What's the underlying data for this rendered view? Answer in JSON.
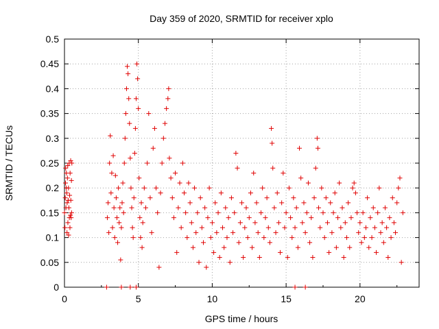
{
  "chart_data": {
    "type": "scatter",
    "title": "Day 359 of 2020, SRMTID for receiver xplo",
    "xlabel": "GPS time / hours",
    "ylabel": "SRMTID / TECUs",
    "xlim": [
      0,
      24
    ],
    "ylim": [
      0,
      0.5
    ],
    "xticks": [
      0,
      5,
      10,
      15,
      20
    ],
    "xtick_labels": [
      "0",
      "5",
      "10",
      "15",
      "20"
    ],
    "yticks": [
      0,
      0.05,
      0.1,
      0.15,
      0.2,
      0.25,
      0.3,
      0.35,
      0.4,
      0.45,
      0.5
    ],
    "ytick_labels": [
      "0",
      "0.05",
      "0.1",
      "0.15",
      "0.2",
      "0.25",
      "0.3",
      "0.35",
      "0.4",
      "0.45",
      "0.5"
    ],
    "grid": true,
    "marker": "+",
    "color": "#e00000",
    "series": [
      {
        "name": "SRMTID",
        "points": [
          [
            0.0,
            0.15
          ],
          [
            0.03,
            0.12
          ],
          [
            0.05,
            0.18
          ],
          [
            0.07,
            0.21
          ],
          [
            0.08,
            0.24
          ],
          [
            0.1,
            0.16
          ],
          [
            0.12,
            0.2
          ],
          [
            0.13,
            0.23
          ],
          [
            0.15,
            0.19
          ],
          [
            0.17,
            0.11
          ],
          [
            0.18,
            0.17
          ],
          [
            0.2,
            0.22
          ],
          [
            0.22,
            0.245
          ],
          [
            0.23,
            0.13
          ],
          [
            0.25,
            0.175
          ],
          [
            0.27,
            0.2
          ],
          [
            0.28,
            0.105
          ],
          [
            0.3,
            0.16
          ],
          [
            0.32,
            0.25
          ],
          [
            0.33,
            0.14
          ],
          [
            0.35,
            0.185
          ],
          [
            0.37,
            0.12
          ],
          [
            0.38,
            0.23
          ],
          [
            0.4,
            0.145
          ],
          [
            0.42,
            0.255
          ],
          [
            0.43,
            0.175
          ],
          [
            0.45,
            0.14
          ],
          [
            0.47,
            0.215
          ],
          [
            0.48,
            0.15
          ],
          [
            0.5,
            0.25
          ],
          [
            2.9,
            0.14
          ],
          [
            2.95,
            0.17
          ],
          [
            3.0,
            0.11
          ],
          [
            3.05,
            0.25
          ],
          [
            3.1,
            0.305
          ],
          [
            3.15,
            0.19
          ],
          [
            3.2,
            0.23
          ],
          [
            3.25,
            0.12
          ],
          [
            3.3,
            0.265
          ],
          [
            3.35,
            0.16
          ],
          [
            3.4,
            0.1
          ],
          [
            3.45,
            0.225
          ],
          [
            3.5,
            0.18
          ],
          [
            3.55,
            0.14
          ],
          [
            3.6,
            0.09
          ],
          [
            3.65,
            0.2
          ],
          [
            3.7,
            0.13
          ],
          [
            3.75,
            0.16
          ],
          [
            3.8,
            0.055
          ],
          [
            3.85,
            0.12
          ],
          [
            3.9,
            0.17
          ],
          [
            3.95,
            0.21
          ],
          [
            4.0,
            0.15
          ],
          [
            4.05,
            0.25
          ],
          [
            4.1,
            0.3
          ],
          [
            4.15,
            0.35
          ],
          [
            4.2,
            0.4
          ],
          [
            4.25,
            0.445
          ],
          [
            4.3,
            0.43
          ],
          [
            4.35,
            0.38
          ],
          [
            4.4,
            0.33
          ],
          [
            4.45,
            0.26
          ],
          [
            4.5,
            0.2
          ],
          [
            4.55,
            0.16
          ],
          [
            4.6,
            0.12
          ],
          [
            4.65,
            0.1
          ],
          [
            4.7,
            0.18
          ],
          [
            4.75,
            0.27
          ],
          [
            4.8,
            0.32
          ],
          [
            4.85,
            0.38
          ],
          [
            4.9,
            0.45
          ],
          [
            4.95,
            0.42
          ],
          [
            5.0,
            0.36
          ],
          [
            5.05,
            0.22
          ],
          [
            5.1,
            0.14
          ],
          [
            5.15,
            0.1
          ],
          [
            5.2,
            0.17
          ],
          [
            5.25,
            0.08
          ],
          [
            5.3,
            0.13
          ],
          [
            5.4,
            0.2
          ],
          [
            5.5,
            0.16
          ],
          [
            5.6,
            0.25
          ],
          [
            5.7,
            0.35
          ],
          [
            5.8,
            0.18
          ],
          [
            5.9,
            0.11
          ],
          [
            6.0,
            0.28
          ],
          [
            6.1,
            0.32
          ],
          [
            6.2,
            0.2
          ],
          [
            6.3,
            0.15
          ],
          [
            6.4,
            0.04
          ],
          [
            6.5,
            0.19
          ],
          [
            6.6,
            0.25
          ],
          [
            6.7,
            0.3
          ],
          [
            6.8,
            0.33
          ],
          [
            6.9,
            0.36
          ],
          [
            7.0,
            0.38
          ],
          [
            7.05,
            0.4
          ],
          [
            7.1,
            0.26
          ],
          [
            7.2,
            0.22
          ],
          [
            7.3,
            0.18
          ],
          [
            7.4,
            0.14
          ],
          [
            7.5,
            0.23
          ],
          [
            7.6,
            0.07
          ],
          [
            7.7,
            0.16
          ],
          [
            7.8,
            0.21
          ],
          [
            7.9,
            0.12
          ],
          [
            8.0,
            0.25
          ],
          [
            8.1,
            0.19
          ],
          [
            8.2,
            0.15
          ],
          [
            8.3,
            0.1
          ],
          [
            8.4,
            0.21
          ],
          [
            8.5,
            0.17
          ],
          [
            8.6,
            0.13
          ],
          [
            8.7,
            0.08
          ],
          [
            8.8,
            0.2
          ],
          [
            8.9,
            0.11
          ],
          [
            9.0,
            0.15
          ],
          [
            9.1,
            0.05
          ],
          [
            9.2,
            0.18
          ],
          [
            9.3,
            0.12
          ],
          [
            9.4,
            0.09
          ],
          [
            9.5,
            0.16
          ],
          [
            9.6,
            0.04
          ],
          [
            9.7,
            0.14
          ],
          [
            9.8,
            0.2
          ],
          [
            9.9,
            0.1
          ],
          [
            10.0,
            0.13
          ],
          [
            10.1,
            0.07
          ],
          [
            10.2,
            0.17
          ],
          [
            10.3,
            0.11
          ],
          [
            10.4,
            0.15
          ],
          [
            10.5,
            0.06
          ],
          [
            10.6,
            0.19
          ],
          [
            10.7,
            0.12
          ],
          [
            10.8,
            0.08
          ],
          [
            10.9,
            0.16
          ],
          [
            11.0,
            0.1
          ],
          [
            11.1,
            0.14
          ],
          [
            11.2,
            0.05
          ],
          [
            11.3,
            0.18
          ],
          [
            11.4,
            0.11
          ],
          [
            11.5,
            0.15
          ],
          [
            11.6,
            0.27
          ],
          [
            11.7,
            0.24
          ],
          [
            11.8,
            0.09
          ],
          [
            11.9,
            0.13
          ],
          [
            12.0,
            0.17
          ],
          [
            12.1,
            0.06
          ],
          [
            12.2,
            0.12
          ],
          [
            12.3,
            0.16
          ],
          [
            12.4,
            0.1
          ],
          [
            12.5,
            0.14
          ],
          [
            12.6,
            0.19
          ],
          [
            12.7,
            0.08
          ],
          [
            12.8,
            0.23
          ],
          [
            12.9,
            0.13
          ],
          [
            13.0,
            0.17
          ],
          [
            13.1,
            0.11
          ],
          [
            13.2,
            0.06
          ],
          [
            13.3,
            0.15
          ],
          [
            13.4,
            0.2
          ],
          [
            13.5,
            0.1
          ],
          [
            13.6,
            0.14
          ],
          [
            13.7,
            0.18
          ],
          [
            13.8,
            0.12
          ],
          [
            13.9,
            0.09
          ],
          [
            14.0,
            0.32
          ],
          [
            14.05,
            0.29
          ],
          [
            14.1,
            0.24
          ],
          [
            14.2,
            0.16
          ],
          [
            14.3,
            0.11
          ],
          [
            14.4,
            0.19
          ],
          [
            14.5,
            0.13
          ],
          [
            14.6,
            0.07
          ],
          [
            14.7,
            0.17
          ],
          [
            14.8,
            0.23
          ],
          [
            14.9,
            0.12
          ],
          [
            15.0,
            0.15
          ],
          [
            15.1,
            0.06
          ],
          [
            15.2,
            0.2
          ],
          [
            15.3,
            0.14
          ],
          [
            15.4,
            0.1
          ],
          [
            15.5,
            0.18
          ],
          [
            15.6,
            0.12
          ],
          [
            15.7,
            0.16
          ],
          [
            15.8,
            0.08
          ],
          [
            15.9,
            0.28
          ],
          [
            16.0,
            0.22
          ],
          [
            16.1,
            0.13
          ],
          [
            16.2,
            0.17
          ],
          [
            16.3,
            0.11
          ],
          [
            16.4,
            0.15
          ],
          [
            16.5,
            0.21
          ],
          [
            16.6,
            0.09
          ],
          [
            16.7,
            0.14
          ],
          [
            16.8,
            0.06
          ],
          [
            16.9,
            0.18
          ],
          [
            17.0,
            0.24
          ],
          [
            17.1,
            0.3
          ],
          [
            17.15,
            0.28
          ],
          [
            17.2,
            0.16
          ],
          [
            17.3,
            0.12
          ],
          [
            17.4,
            0.2
          ],
          [
            17.5,
            0.15
          ],
          [
            17.6,
            0.1
          ],
          [
            17.7,
            0.18
          ],
          [
            17.8,
            0.13
          ],
          [
            17.9,
            0.07
          ],
          [
            18.0,
            0.17
          ],
          [
            18.1,
            0.11
          ],
          [
            18.2,
            0.15
          ],
          [
            18.3,
            0.19
          ],
          [
            18.4,
            0.08
          ],
          [
            18.5,
            0.14
          ],
          [
            18.6,
            0.21
          ],
          [
            18.7,
            0.12
          ],
          [
            18.8,
            0.16
          ],
          [
            18.9,
            0.06
          ],
          [
            19.0,
            0.13
          ],
          [
            19.1,
            0.1
          ],
          [
            19.2,
            0.17
          ],
          [
            19.3,
            0.08
          ],
          [
            19.4,
            0.14
          ],
          [
            19.5,
            0.2
          ],
          [
            19.6,
            0.21
          ],
          [
            19.7,
            0.19
          ],
          [
            19.8,
            0.15
          ],
          [
            19.9,
            0.11
          ],
          [
            20.0,
            0.13
          ],
          [
            20.1,
            0.09
          ],
          [
            20.2,
            0.15
          ],
          [
            20.3,
            0.1
          ],
          [
            20.4,
            0.12
          ],
          [
            20.5,
            0.18
          ],
          [
            20.6,
            0.08
          ],
          [
            20.7,
            0.14
          ],
          [
            20.8,
            0.1
          ],
          [
            20.9,
            0.16
          ],
          [
            21.0,
            0.12
          ],
          [
            21.1,
            0.07
          ],
          [
            21.2,
            0.15
          ],
          [
            21.3,
            0.2
          ],
          [
            21.4,
            0.11
          ],
          [
            21.5,
            0.13
          ],
          [
            21.6,
            0.09
          ],
          [
            21.7,
            0.16
          ],
          [
            21.8,
            0.12
          ],
          [
            21.9,
            0.06
          ],
          [
            22.0,
            0.14
          ],
          [
            22.1,
            0.1
          ],
          [
            22.2,
            0.18
          ],
          [
            22.3,
            0.13
          ],
          [
            22.4,
            0.11
          ],
          [
            22.5,
            0.17
          ],
          [
            22.6,
            0.2
          ],
          [
            22.7,
            0.22
          ],
          [
            22.8,
            0.05
          ],
          [
            22.9,
            0.15
          ],
          [
            2.85,
            0.0
          ],
          [
            3.85,
            0.0
          ],
          [
            4.45,
            0.0
          ],
          [
            4.85,
            0.0
          ],
          [
            15.6,
            0.0
          ],
          [
            16.3,
            0.0
          ]
        ]
      }
    ]
  }
}
